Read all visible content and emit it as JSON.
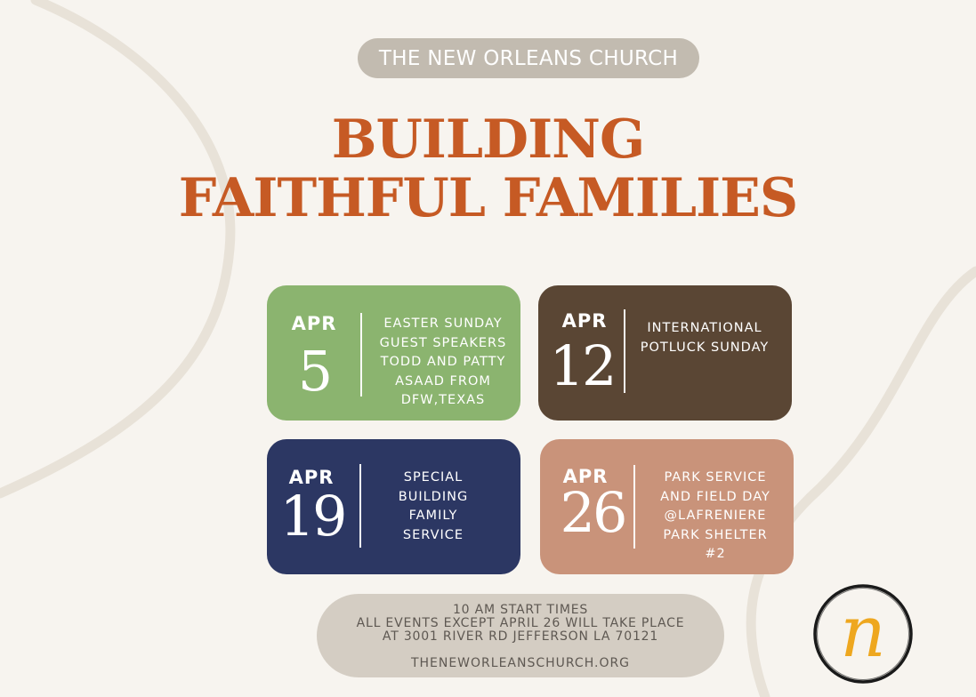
{
  "header": {
    "church_name": "THE NEW ORLEANS CHURCH"
  },
  "title": {
    "line1": "BUILDING",
    "line2": "FAITHFUL FAMILIES"
  },
  "events": [
    {
      "month": "APR",
      "day": "5",
      "lines": [
        "EASTER SUNDAY",
        "GUEST SPEAKERS",
        "TODD AND PATTY",
        "ASAAD FROM",
        "DFW,TEXAS"
      ],
      "color": "#8bb46f"
    },
    {
      "month": "APR",
      "day": "12",
      "lines": [
        "INTERNATIONAL",
        "POTLUCK SUNDAY"
      ],
      "color": "#5a4634"
    },
    {
      "month": "APR",
      "day": "19",
      "lines": [
        "SPECIAL",
        "BUILDING",
        "FAMILY",
        "SERVICE"
      ],
      "color": "#2c3763"
    },
    {
      "month": "APR",
      "day": "26",
      "lines": [
        "PARK SERVICE",
        "AND FIELD DAY",
        "@LAFRENIERE",
        "PARK SHELTER",
        "#2"
      ],
      "color": "#c9937a"
    }
  ],
  "footer": {
    "line1": "10 AM START TIMES",
    "line2": "ALL EVENTS EXCEPT APRIL 26 WILL TAKE PLACE",
    "line3": "AT 3001 RIVER RD JEFFERSON LA 70121",
    "url": "THENEWORLEANSCHURCH.ORG"
  },
  "logo": {
    "letter": "n",
    "accent": "#eea71f"
  },
  "colors": {
    "background": "#f7f4ef",
    "title": "#c65a24",
    "pill": "#c2bbb0",
    "footer_pill": "#d4cdc3",
    "curve": "#e8e2d8"
  }
}
